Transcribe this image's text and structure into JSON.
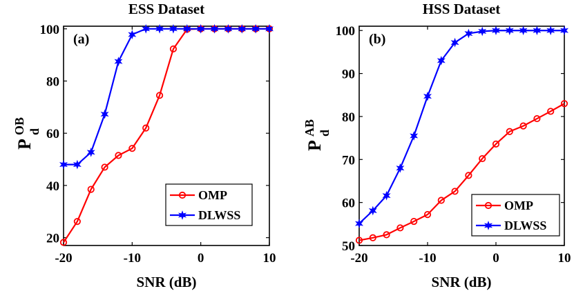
{
  "chart_data": [
    {
      "type": "line",
      "panel_label": "(a)",
      "title": "ESS Dataset",
      "xlabel": "SNR (dB)",
      "ylabel_main": "P",
      "ylabel_sub": "d",
      "ylabel_sup": "OB",
      "xlim": [
        -20,
        10
      ],
      "ylim": [
        17,
        101
      ],
      "xticks": [
        -20,
        -10,
        0,
        10
      ],
      "xtick_labels": [
        "-20",
        "-10",
        "0",
        "10"
      ],
      "yticks": [
        20,
        40,
        60,
        80,
        100
      ],
      "ytick_labels": [
        "20",
        "40",
        "60",
        "80",
        "100"
      ],
      "legend_position": "bottom-right",
      "x": [
        -20,
        -18,
        -16,
        -14,
        -12,
        -10,
        -8,
        -6,
        -4,
        -2,
        0,
        2,
        4,
        6,
        8,
        10
      ],
      "series": [
        {
          "name": "OMP",
          "color": "#ff0000",
          "marker": "circle",
          "values": [
            18.2,
            26.2,
            38.5,
            47.0,
            51.5,
            54.2,
            62.0,
            74.5,
            92.3,
            99.8,
            100,
            100,
            100,
            100,
            100,
            100
          ]
        },
        {
          "name": "DLWSS",
          "color": "#0000ff",
          "marker": "star",
          "values": [
            48.0,
            48.0,
            52.7,
            67.3,
            87.5,
            97.8,
            100,
            100,
            100,
            100,
            100,
            100,
            100,
            100,
            100,
            100
          ]
        }
      ]
    },
    {
      "type": "line",
      "panel_label": "(b)",
      "title": "HSS Dataset",
      "xlabel": "SNR (dB)",
      "ylabel_main": "P",
      "ylabel_sub": "d",
      "ylabel_sup": "AB",
      "xlim": [
        -20,
        10
      ],
      "ylim": [
        50,
        101
      ],
      "xticks": [
        -20,
        -10,
        0,
        10
      ],
      "xtick_labels": [
        "-20",
        "-10",
        "0",
        "10"
      ],
      "yticks": [
        50,
        60,
        70,
        80,
        90,
        100
      ],
      "ytick_labels": [
        "50",
        "60",
        "70",
        "80",
        "90",
        "100"
      ],
      "legend_position": "bottom-right",
      "x": [
        -20,
        -18,
        -16,
        -14,
        -12,
        -10,
        -8,
        -6,
        -4,
        -2,
        0,
        2,
        4,
        6,
        8,
        10
      ],
      "series": [
        {
          "name": "OMP",
          "color": "#ff0000",
          "marker": "circle",
          "values": [
            51.2,
            51.8,
            52.5,
            54.1,
            55.6,
            57.2,
            60.5,
            62.6,
            66.3,
            70.2,
            73.6,
            76.5,
            77.8,
            79.5,
            81.2,
            83.0
          ]
        },
        {
          "name": "DLWSS",
          "color": "#0000ff",
          "marker": "star",
          "values": [
            55.1,
            58.1,
            61.6,
            68.0,
            75.5,
            84.7,
            93.0,
            97.2,
            99.3,
            99.8,
            100,
            100,
            100,
            100,
            100,
            100
          ]
        }
      ]
    }
  ]
}
